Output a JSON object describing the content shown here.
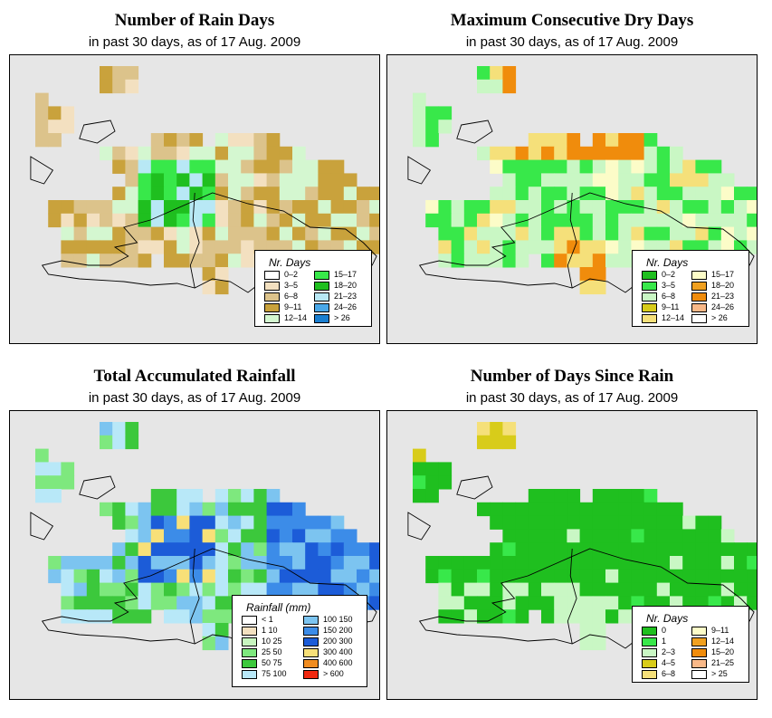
{
  "panels": [
    {
      "id": "rain_days",
      "title": "Number of Rain Days",
      "subtitle": "in past 30 days, as of  17 Aug. 2009",
      "legend": {
        "title": "Nr. Days",
        "items": [
          {
            "label": "0–2",
            "color": "#ffffff"
          },
          {
            "label": "3–5",
            "color": "#f3e0c0"
          },
          {
            "label": "6–8",
            "color": "#dcc38b"
          },
          {
            "label": "9–11",
            "color": "#c9a23c"
          },
          {
            "label": "12–14",
            "color": "#d4f7d0"
          },
          {
            "label": "15–17",
            "color": "#38e84a"
          },
          {
            "label": "18–20",
            "color": "#1fbf1f"
          },
          {
            "label": "21–23",
            "color": "#b8e8f5"
          },
          {
            "label": "24–26",
            "color": "#4aa8e8"
          },
          {
            "label": "> 26",
            "color": "#1a7fd0"
          }
        ]
      }
    },
    {
      "id": "dry_days",
      "title": "Maximum Consecutive Dry Days",
      "subtitle": "in past 30 days, as of  17 Aug. 2009",
      "legend": {
        "title": "Nr. Days",
        "items": [
          {
            "label": "0–2",
            "color": "#1fbf1f"
          },
          {
            "label": "3–5",
            "color": "#38e84a"
          },
          {
            "label": "6–8",
            "color": "#c9f7c4"
          },
          {
            "label": "9–11",
            "color": "#d8cc1a"
          },
          {
            "label": "12–14",
            "color": "#f5e07a"
          },
          {
            "label": "15–17",
            "color": "#fcfcc8"
          },
          {
            "label": "18–20",
            "color": "#f0a020"
          },
          {
            "label": "21–23",
            "color": "#f08c0c"
          },
          {
            "label": "24–26",
            "color": "#f8b888"
          },
          {
            "label": "> 26",
            "color": "#ffffff"
          }
        ]
      }
    },
    {
      "id": "rainfall",
      "title": "Total Accumulated Rainfall",
      "subtitle": "in past 30 days, as of  17 Aug. 2009",
      "legend": {
        "title": "Rainfall (mm)",
        "items": [
          {
            "label": "< 1",
            "color": "#ffffff"
          },
          {
            "label": "1   10",
            "color": "#f3e0c0"
          },
          {
            "label": "10   25",
            "color": "#c8f5c0"
          },
          {
            "label": "25   50",
            "color": "#7ee87e"
          },
          {
            "label": "50   75",
            "color": "#3cc83c"
          },
          {
            "label": "75  100",
            "color": "#b8e8f8"
          },
          {
            "label": "100  150",
            "color": "#7cc4f0"
          },
          {
            "label": "150  200",
            "color": "#3c8ce8"
          },
          {
            "label": "200  300",
            "color": "#1c5cd8"
          },
          {
            "label": "300  400",
            "color": "#f8e078"
          },
          {
            "label": "400  600",
            "color": "#f08c20"
          },
          {
            "label": "> 600",
            "color": "#f02810"
          }
        ]
      }
    },
    {
      "id": "days_since",
      "title": "Number of Days Since Rain",
      "subtitle": "in past 30 days, as of  17 Aug. 2009",
      "legend": {
        "title": "Nr. Days",
        "items": [
          {
            "label": "0",
            "color": "#1fbf1f"
          },
          {
            "label": "1",
            "color": "#38e84a"
          },
          {
            "label": "2–3",
            "color": "#c9f7c4"
          },
          {
            "label": "4–5",
            "color": "#d8cc1a"
          },
          {
            "label": "6–8",
            "color": "#f5e07a"
          },
          {
            "label": "9–11",
            "color": "#fcfcc8"
          },
          {
            "label": "12–14",
            "color": "#f0a020"
          },
          {
            "label": "15–20",
            "color": "#f08c0c"
          },
          {
            "label": "21–25",
            "color": "#f8b888"
          },
          {
            "label": "> 25",
            "color": "#ffffff"
          }
        ]
      }
    }
  ]
}
